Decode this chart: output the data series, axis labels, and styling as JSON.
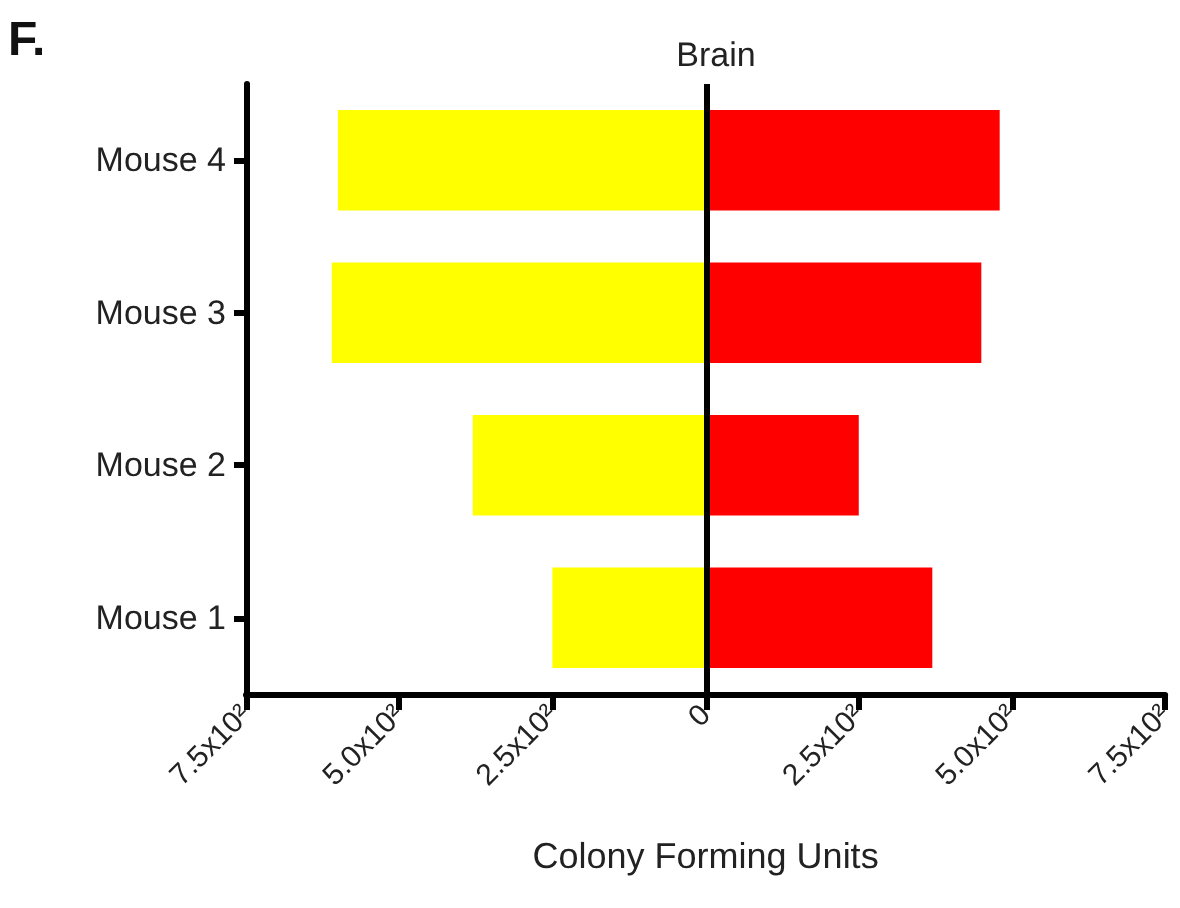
{
  "chart_data": {
    "type": "bar",
    "orientation": "horizontal",
    "stacked": true,
    "title": "Brain",
    "xlabel": "Colony Forming Units",
    "annotations": [
      "F."
    ],
    "categories": [
      "Mouse 4",
      "Mouse 3",
      "Mouse 2",
      "Mouse 1"
    ],
    "series": [
      {
        "color": "#ffff00",
        "values": [
          -600,
          -610,
          -380,
          -250
        ]
      },
      {
        "color": "#ff0000",
        "values": [
          480,
          450,
          250,
          370
        ]
      }
    ],
    "xlim": [
      -750,
      750
    ],
    "xticks": [
      {
        "value": -750,
        "label": "7.5x10²"
      },
      {
        "value": -500,
        "label": "5.0x10²"
      },
      {
        "value": -250,
        "label": "2.5x10²"
      },
      0,
      {
        "value": 250,
        "label": "2.5x10²"
      },
      {
        "value": 500,
        "label": "5.0x10²"
      },
      {
        "value": 750,
        "label": "7.5x10²"
      }
    ],
    "ref_lines": [
      {
        "axis": "x",
        "value": 0,
        "color": "#000000"
      }
    ],
    "grid": false
  }
}
